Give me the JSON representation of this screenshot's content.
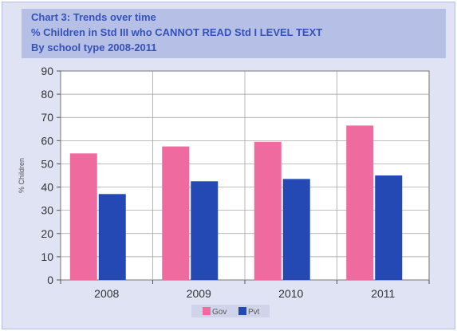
{
  "colors": {
    "gov": "#ef6a9f",
    "pvt": "#2449b4",
    "title": "#3552b8",
    "background": "#dfe3f3",
    "title_box": "#b6bfe6"
  },
  "chart_data": {
    "type": "bar",
    "title_lines": [
      "Chart 3: Trends over time",
      "% Children in Std III who CANNOT READ Std I LEVEL TEXT",
      "By school type 2008-2011"
    ],
    "categories": [
      "2008",
      "2009",
      "2010",
      "2011"
    ],
    "series": [
      {
        "name": "Gov",
        "values": [
          54.5,
          57.5,
          59.5,
          66.5
        ]
      },
      {
        "name": "Pvt",
        "values": [
          37,
          42.5,
          43.5,
          45
        ]
      }
    ],
    "ylabel": "% Children",
    "ylim": [
      0,
      90
    ],
    "yticks": [
      "0",
      "10",
      "20",
      "30",
      "40",
      "50",
      "60",
      "70",
      "80",
      "90"
    ],
    "grid": true,
    "legend_position": "bottom"
  }
}
